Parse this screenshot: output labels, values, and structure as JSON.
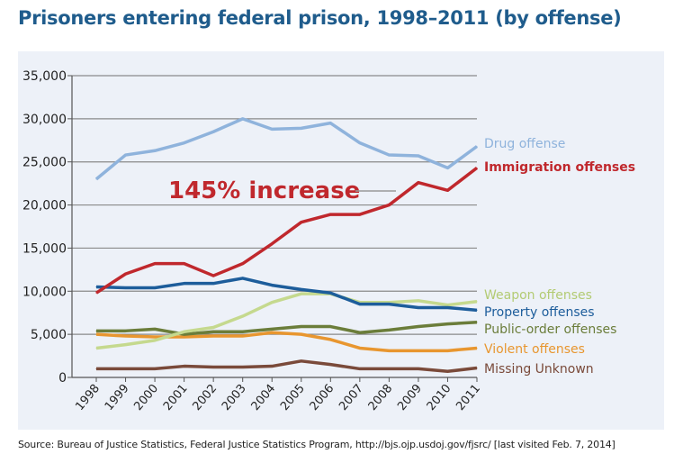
{
  "title": "Prisoners entering federal prison, 1998–2011 (by offense)",
  "source": "Source: Bureau of Justice Statistics, Federal Justice Statistics Program, http://bjs.ojp.usdoj.gov/fjsrc/ [last visited Feb. 7, 2014]",
  "chart_data": {
    "type": "line",
    "title": "Prisoners entering federal prison, 1998–2011 (by offense)",
    "x": [
      "1998",
      "1999",
      "2000",
      "2001",
      "2002",
      "2003",
      "2004",
      "2005",
      "2006",
      "2007",
      "2008",
      "2009",
      "2010",
      "2011"
    ],
    "yticks": [
      "0",
      "5,000",
      "10,000",
      "15,000",
      "20,000",
      "25,000",
      "30,000",
      "35,000"
    ],
    "ylim": [
      0,
      35000
    ],
    "grid": "horizontal",
    "legend": "right, labels at line ends",
    "annotation": "145% increase",
    "series": [
      {
        "name": "Drug offense",
        "color": "#8fb3dc",
        "values": [
          23000,
          25800,
          26300,
          27200,
          28500,
          30000,
          28800,
          28900,
          29500,
          27200,
          25800,
          25700,
          24300,
          26800
        ]
      },
      {
        "name": "Immigration offenses",
        "color": "#c0282d",
        "values": [
          9800,
          12000,
          13200,
          13200,
          11800,
          13200,
          15500,
          18000,
          18900,
          18900,
          20000,
          22600,
          21700,
          24300
        ]
      },
      {
        "name": "Weapon offenses",
        "color": "#c5d98e",
        "values": [
          3400,
          3800,
          4300,
          5300,
          5800,
          7100,
          8700,
          9700,
          9700,
          8700,
          8700,
          8900,
          8400,
          8800
        ]
      },
      {
        "name": "Property offenses",
        "color": "#1d5d9b",
        "values": [
          10500,
          10400,
          10400,
          10900,
          10900,
          11500,
          10700,
          10200,
          9800,
          8500,
          8500,
          8100,
          8100,
          7800
        ]
      },
      {
        "name": "Public-order offenses",
        "color": "#6b7d3a",
        "values": [
          5400,
          5400,
          5600,
          5000,
          5300,
          5300,
          5600,
          5900,
          5900,
          5200,
          5500,
          5900,
          6200,
          6400
        ]
      },
      {
        "name": "Violent offenses",
        "color": "#e8962f",
        "values": [
          5000,
          4800,
          4700,
          4700,
          4800,
          4800,
          5200,
          5000,
          4400,
          3400,
          3100,
          3100,
          3100,
          3400
        ]
      },
      {
        "name": "Missing Unknown",
        "color": "#7a4a3a",
        "values": [
          1000,
          1000,
          1000,
          1300,
          1200,
          1200,
          1300,
          1900,
          1500,
          1000,
          1000,
          1000,
          700,
          1100
        ]
      }
    ]
  }
}
